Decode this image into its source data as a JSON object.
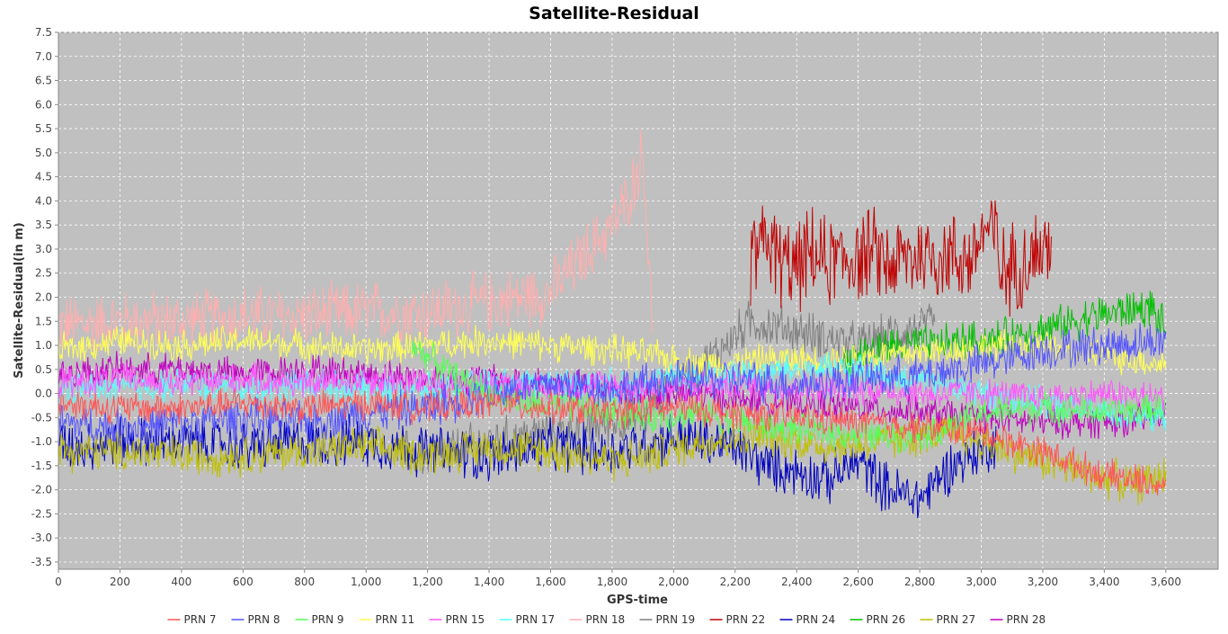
{
  "chart_data": {
    "type": "line",
    "title": "Satellite-Residual",
    "xlabel": "GPS-time",
    "ylabel": "Satellite-Residual(in m)",
    "xlim": [
      0,
      3770
    ],
    "ylim": [
      -3.65,
      7.5
    ],
    "x_ticks": [
      "0",
      "200",
      "400",
      "600",
      "800",
      "1,000",
      "1,200",
      "1,400",
      "1,600",
      "1,800",
      "2,000",
      "2,200",
      "2,400",
      "2,600",
      "2,800",
      "3,000",
      "3,200",
      "3,400",
      "3,600"
    ],
    "x_tick_values": [
      0,
      200,
      400,
      600,
      800,
      1000,
      1200,
      1400,
      1600,
      1800,
      2000,
      2200,
      2400,
      2600,
      2800,
      3000,
      3200,
      3400,
      3600
    ],
    "y_ticks": [
      "7.5",
      "7.0",
      "6.5",
      "6.0",
      "5.5",
      "5.0",
      "4.5",
      "4.0",
      "3.5",
      "3.0",
      "2.5",
      "2.0",
      "1.5",
      "1.0",
      "0.5",
      "0.0",
      "-0.5",
      "-1.0",
      "-1.5",
      "-2.0",
      "-2.5",
      "-3.0",
      "-3.5"
    ],
    "y_tick_values": [
      7.5,
      7.0,
      6.5,
      6.0,
      5.5,
      5.0,
      4.5,
      4.0,
      3.5,
      3.0,
      2.5,
      2.0,
      1.5,
      1.0,
      0.5,
      0.0,
      -0.5,
      -1.0,
      -1.5,
      -2.0,
      -2.5,
      -3.0,
      -3.5
    ],
    "grid": true,
    "legend_position": "bottom",
    "plot_background": "#c0c0c0",
    "series": [
      {
        "name": "PRN 7",
        "color": "#ff5555",
        "x": [
          0,
          200,
          400,
          600,
          800,
          1000,
          1200,
          1400,
          1600,
          1800,
          2000,
          2200,
          2400,
          2600,
          2800,
          3000,
          3200,
          3400,
          3600
        ],
        "values": [
          -0.2,
          -0.3,
          -0.3,
          -0.2,
          -0.3,
          -0.2,
          -0.3,
          -0.2,
          -0.3,
          -0.4,
          -0.3,
          -0.4,
          -0.5,
          -0.6,
          -0.7,
          -0.8,
          -1.2,
          -1.7,
          -1.9
        ]
      },
      {
        "name": "PRN 8",
        "color": "#5555ff",
        "x": [
          0,
          200,
          400,
          600,
          800,
          1000,
          1200,
          1400,
          1600,
          1800,
          2000,
          2200,
          2400,
          2600,
          2800,
          3000,
          3200,
          3400,
          3600
        ],
        "values": [
          -0.6,
          -0.7,
          -0.6,
          -0.5,
          -0.6,
          -0.4,
          -0.3,
          0.0,
          0.2,
          0.1,
          0.3,
          0.3,
          0.2,
          0.3,
          0.4,
          0.6,
          0.9,
          1.0,
          1.1
        ]
      },
      {
        "name": "PRN 9",
        "color": "#55ff55",
        "x": [
          1150,
          1300,
          1500,
          1700,
          1920,
          2100,
          2300,
          2500,
          2700,
          2850,
          3000,
          3200,
          3400,
          3600
        ],
        "values": [
          1.0,
          0.3,
          -0.2,
          -0.3,
          -0.5,
          -0.4,
          -0.7,
          -0.8,
          -0.9,
          -0.8,
          -0.4,
          -0.3,
          -0.4,
          -0.3
        ]
      },
      {
        "name": "PRN 11",
        "color": "#ffff55",
        "x": [
          0,
          200,
          400,
          600,
          800,
          1000,
          1200,
          1400,
          1600,
          1800,
          1920,
          2100,
          2300,
          2500,
          2700,
          2900,
          3100,
          3300,
          3500,
          3600
        ],
        "values": [
          0.9,
          1.1,
          1.0,
          1.1,
          1.0,
          0.9,
          1.0,
          1.1,
          1.0,
          0.9,
          0.8,
          0.6,
          0.7,
          0.7,
          0.8,
          0.9,
          1.0,
          0.9,
          0.7,
          0.6
        ]
      },
      {
        "name": "PRN 15",
        "color": "#ff55ff",
        "x": [
          0,
          200,
          400,
          600,
          800,
          1000,
          1200,
          1400,
          1600,
          1800,
          2000,
          2200,
          2400,
          2600,
          2800,
          3000,
          3200,
          3400,
          3600
        ],
        "values": [
          0.2,
          0.3,
          0.2,
          0.3,
          0.2,
          0.3,
          0.2,
          0.2,
          0.1,
          0.2,
          0.1,
          0.2,
          0.1,
          0.1,
          0.0,
          0.0,
          -0.1,
          0.0,
          -0.1
        ]
      },
      {
        "name": "PRN 17",
        "color": "#55ffff",
        "x": [
          0,
          200,
          400,
          600,
          800,
          1000,
          1200,
          1400,
          1600,
          1800,
          2000,
          2200,
          2400,
          2600,
          2800,
          3000,
          3200,
          3400,
          3600
        ],
        "values": [
          0.1,
          0.1,
          0.2,
          0.1,
          0.2,
          0.1,
          0.1,
          0.2,
          0.2,
          0.2,
          0.3,
          0.4,
          0.5,
          0.5,
          0.3,
          0.0,
          -0.2,
          -0.4,
          -0.5
        ]
      },
      {
        "name": "PRN 18",
        "color": "#ffafaf",
        "x": [
          0,
          200,
          400,
          600,
          800,
          1000,
          1200,
          1400,
          1600,
          1700,
          1800,
          1850,
          1900,
          1930
        ],
        "values": [
          1.4,
          1.5,
          1.5,
          1.6,
          1.6,
          1.7,
          1.7,
          1.9,
          2.1,
          2.8,
          3.5,
          4.0,
          5.0,
          1.5
        ]
      },
      {
        "name": "PRN 19",
        "color": "#808080",
        "x": [
          1100,
          1200,
          1400,
          1600,
          1800,
          1900,
          2000,
          2100,
          2200,
          2250,
          2400,
          2600,
          2800,
          2850
        ],
        "values": [
          -1.2,
          -1.3,
          -1.0,
          -0.8,
          -0.6,
          -0.5,
          0.2,
          0.6,
          1.2,
          1.5,
          1.3,
          1.0,
          1.4,
          1.4
        ]
      },
      {
        "name": "PRN 22",
        "color": "#c00000",
        "x": [
          2250,
          2300,
          2350,
          2400,
          2450,
          2500,
          2550,
          2650,
          2700,
          2750,
          2800,
          2980,
          3000,
          3050,
          3060,
          3210,
          3230
        ],
        "values": [
          2.8,
          3.2,
          2.7,
          2.6,
          2.9,
          2.7,
          2.8,
          2.9,
          2.7,
          2.8,
          2.9,
          2.8,
          3.4,
          3.3,
          2.5,
          3.0,
          3.2
        ]
      },
      {
        "name": "PRN 24",
        "color": "#0000c0",
        "x": [
          0,
          200,
          400,
          600,
          800,
          1000,
          1200,
          1400,
          1600,
          1800,
          2000,
          2200,
          2300,
          2400,
          2500,
          2600,
          2700,
          2800,
          2900,
          3000,
          3050
        ],
        "values": [
          -1.1,
          -1.0,
          -1.0,
          -1.1,
          -1.0,
          -1.0,
          -1.2,
          -1.3,
          -1.1,
          -1.2,
          -0.9,
          -1.1,
          -1.5,
          -1.6,
          -1.8,
          -1.4,
          -2.0,
          -2.2,
          -1.5,
          -1.2,
          -1.0
        ]
      },
      {
        "name": "PRN 26",
        "color": "#00c000",
        "x": [
          2550,
          2650,
          2750,
          2850,
          2950,
          3050,
          3150,
          3250,
          3350,
          3450,
          3550,
          3600
        ],
        "values": [
          0.7,
          0.9,
          1.0,
          1.0,
          1.1,
          1.1,
          1.3,
          1.4,
          1.6,
          1.7,
          1.8,
          1.3
        ]
      },
      {
        "name": "PRN 27",
        "color": "#c0c000",
        "x": [
          0,
          200,
          400,
          600,
          800,
          1000,
          1200,
          1400,
          1600,
          1800,
          1920,
          2100,
          2300,
          2500,
          2700,
          2900,
          3100,
          3300,
          3500,
          3600
        ],
        "values": [
          -1.2,
          -1.2,
          -1.3,
          -1.3,
          -1.2,
          -1.1,
          -1.3,
          -1.1,
          -1.2,
          -1.4,
          -1.3,
          -1.0,
          -0.9,
          -1.1,
          -1.0,
          -0.8,
          -1.2,
          -1.6,
          -1.9,
          -1.7
        ]
      },
      {
        "name": "PRN 28",
        "color": "#c000c0",
        "x": [
          0,
          200,
          400,
          600,
          800,
          1000,
          1200,
          1400,
          1600,
          1800,
          2000,
          2200,
          2400,
          2600,
          2800,
          3000,
          3200,
          3400,
          3600
        ],
        "values": [
          0.4,
          0.5,
          0.5,
          0.4,
          0.5,
          0.4,
          0.3,
          0.3,
          0.2,
          0.1,
          0.0,
          -0.1,
          -0.2,
          -0.3,
          -0.4,
          -0.5,
          -0.6,
          -0.6,
          -0.5
        ]
      }
    ]
  }
}
